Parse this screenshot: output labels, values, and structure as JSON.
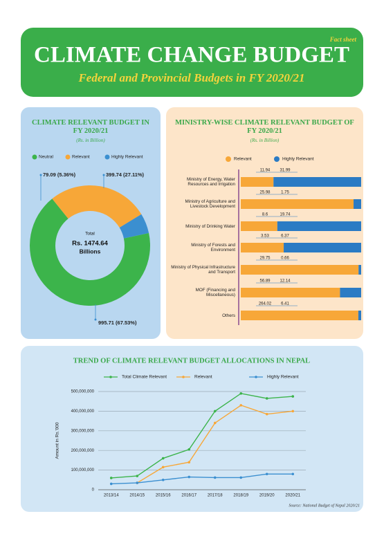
{
  "header": {
    "tag": "Fact sheet",
    "title": "CLIMATE CHANGE BUDGET",
    "subtitle": "Federal and Provincial Budgets in FY 2020/21"
  },
  "source": "Source: National Budget of Nepal 2020/21",
  "chart_data": [
    {
      "type": "donut",
      "title": "CLIMATE RELEVANT BUDGET IN FY 2020/21",
      "subtitle": "(Rs. in Billion)",
      "center_text": [
        "Total",
        "Rs. 1474.64",
        "Billions"
      ],
      "categories": [
        "Neutral",
        "Relevant",
        "Highly Relevant"
      ],
      "values": [
        995.71,
        399.74,
        79.09
      ],
      "value_labels": [
        "995.71 (67.53%)",
        "399.74 (27.11%)",
        "79.09 (5.36%)"
      ],
      "colors": [
        "#3cb44b",
        "#f7a738",
        "#3b8fd0"
      ]
    },
    {
      "type": "bar",
      "orientation": "horizontal",
      "stacked": true,
      "title": "MINISTRY-WISE CLIMATE RELEVANT BUDGET OF FY 2020/21",
      "subtitle": "(Rs. in Billion)",
      "categories": [
        "Ministry of Energy, Water Resources and Irrigation",
        "Ministry of Agriculture and Livestock Development",
        "Ministry of Drinking Water",
        "Ministry of Forests and Environment",
        "Ministry of Physical Infrastructure and Transport",
        "MOF (Financing and Miscellaneous)",
        "Others"
      ],
      "series": [
        {
          "name": "Relevant",
          "color": "#f7a738",
          "values": [
            11.94,
            25.98,
            8.6,
            3.53,
            29.75,
            56.89,
            264.02
          ]
        },
        {
          "name": "Highly Relevant",
          "color": "#2b7bc4",
          "values": [
            31.99,
            1.75,
            19.74,
            6.37,
            0.66,
            12.14,
            6.41
          ]
        }
      ]
    },
    {
      "type": "line",
      "title": "TREND OF CLIMATE RELEVANT BUDGET ALLOCATIONS IN NEPAL",
      "y_label": "Amount in Rs.'000",
      "categories": [
        "2013/14",
        "2014/15",
        "2015/16",
        "2016/17",
        "2017/18",
        "2018/19",
        "2019/20",
        "2020/21"
      ],
      "ylim": [
        0,
        500000000
      ],
      "yticks": [
        0,
        {
          "value": 100000000,
          "label": "100,000,000"
        },
        {
          "value": 200000000,
          "label": "200,000,000"
        },
        {
          "value": 300000000,
          "label": "300,000,000"
        },
        {
          "value": 400000000,
          "label": "400,000,000"
        },
        {
          "value": 500000000,
          "label": "500,000,000"
        }
      ],
      "grid": true,
      "series": [
        {
          "name": "Total Climate Relevant",
          "color": "#3cb44b",
          "values": [
            60000000,
            70000000,
            160000000,
            205000000,
            400000000,
            490000000,
            465000000,
            475000000
          ]
        },
        {
          "name": "Relevant",
          "color": "#f7a738",
          "values": [
            null,
            35000000,
            115000000,
            140000000,
            340000000,
            430000000,
            385000000,
            400000000
          ]
        },
        {
          "name": "Highly Relevant",
          "color": "#3b8fd0",
          "values": [
            30000000,
            35000000,
            50000000,
            65000000,
            62000000,
            62000000,
            80000000,
            80000000
          ]
        }
      ]
    }
  ]
}
